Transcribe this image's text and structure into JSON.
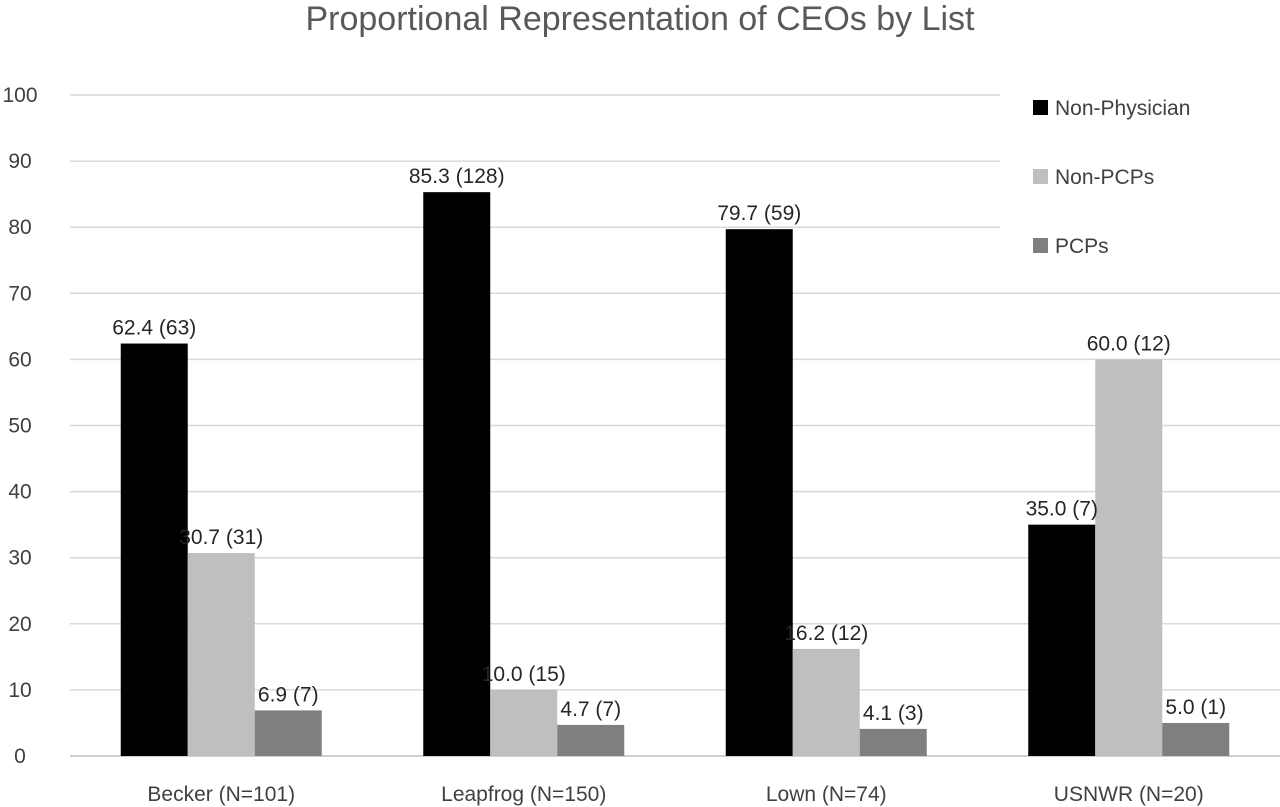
{
  "chart_data": {
    "type": "bar",
    "title": "Proportional Representation of CEOs by List",
    "xlabel": "",
    "ylabel": "",
    "ylim": [
      0,
      100
    ],
    "yticks": [
      "0",
      "10",
      "20",
      "30",
      "40",
      "50",
      "60",
      "70",
      "80",
      "90",
      "100"
    ],
    "categories": [
      "Becker (N=101)",
      "Leapfrog (N=150)",
      "Lown (N=74)",
      "USNWR (N=20)"
    ],
    "series": [
      {
        "name": "Non-Physician",
        "color": "#000000",
        "values": [
          62.4,
          85.3,
          79.7,
          35.0
        ],
        "labels": [
          "62.4 (63)",
          "85.3 (128)",
          "79.7 (59)",
          "35.0 (7)"
        ]
      },
      {
        "name": "Non-PCPs",
        "color": "#bfbfbf",
        "values": [
          30.7,
          10.0,
          16.2,
          60.0
        ],
        "labels": [
          "30.7 (31)",
          "10.0 (15)",
          "16.2 (12)",
          "60.0 (12)"
        ]
      },
      {
        "name": "PCPs",
        "color": "#7f7f7f",
        "values": [
          6.9,
          4.7,
          4.1,
          5.0
        ],
        "labels": [
          "6.9 (7)",
          "4.7 (7)",
          "4.1 (3)",
          "5.0 (1)"
        ]
      }
    ],
    "grid": true,
    "legend_position": "top-right"
  }
}
